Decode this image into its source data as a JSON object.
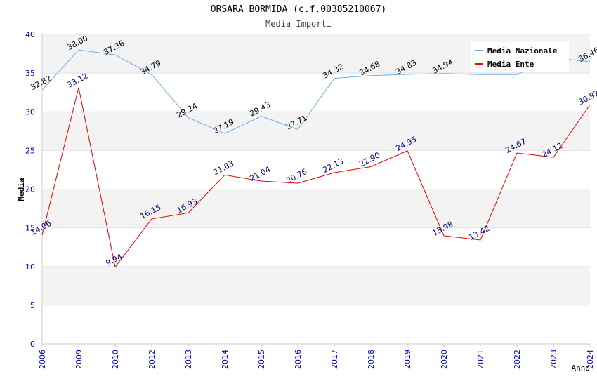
{
  "chart_data": {
    "type": "line",
    "title": "ORSARA BORMIDA (c.f.00385210067)",
    "subtitle": "Media Importi",
    "xlabel": "Anno",
    "ylabel": "Media",
    "ylim": [
      0,
      40
    ],
    "yticks": [
      0,
      5,
      10,
      15,
      20,
      25,
      30,
      35,
      40
    ],
    "categories": [
      "2006",
      "2009",
      "2010",
      "2012",
      "2013",
      "2014",
      "2015",
      "2016",
      "2017",
      "2018",
      "2019",
      "2020",
      "2021",
      "2022",
      "2023",
      "2024"
    ],
    "grid": true,
    "legend_position": "top-right",
    "series": [
      {
        "name": "Media Nazionale",
        "color": "#6aaee8",
        "label_color": "#000000",
        "values": [
          32.82,
          38.0,
          37.36,
          34.79,
          29.24,
          27.19,
          29.43,
          27.71,
          34.32,
          34.68,
          34.83,
          34.94,
          34.8,
          34.8,
          37.0,
          36.46
        ],
        "labels": [
          "32.82",
          "38.00",
          "37.36",
          "34.79",
          "29.24",
          "27.19",
          "29.43",
          "27.71",
          "34.32",
          "34.68",
          "34.83",
          "34.94",
          "",
          "",
          "",
          "36.46"
        ]
      },
      {
        "name": "Media Ente",
        "color": "#ee0000",
        "label_color": "#000080",
        "values": [
          14.06,
          33.12,
          9.94,
          16.15,
          16.93,
          21.83,
          21.04,
          20.76,
          22.13,
          22.9,
          24.95,
          13.98,
          13.42,
          24.67,
          24.12,
          30.92
        ],
        "labels": [
          "14.06",
          "33.12",
          "9.94",
          "16.15",
          "16.93",
          "21.83",
          "21.04",
          "20.76",
          "22.13",
          "22.90",
          "24.95",
          "13.98",
          "13.42",
          "24.67",
          "24.12",
          "30.92"
        ]
      }
    ]
  }
}
